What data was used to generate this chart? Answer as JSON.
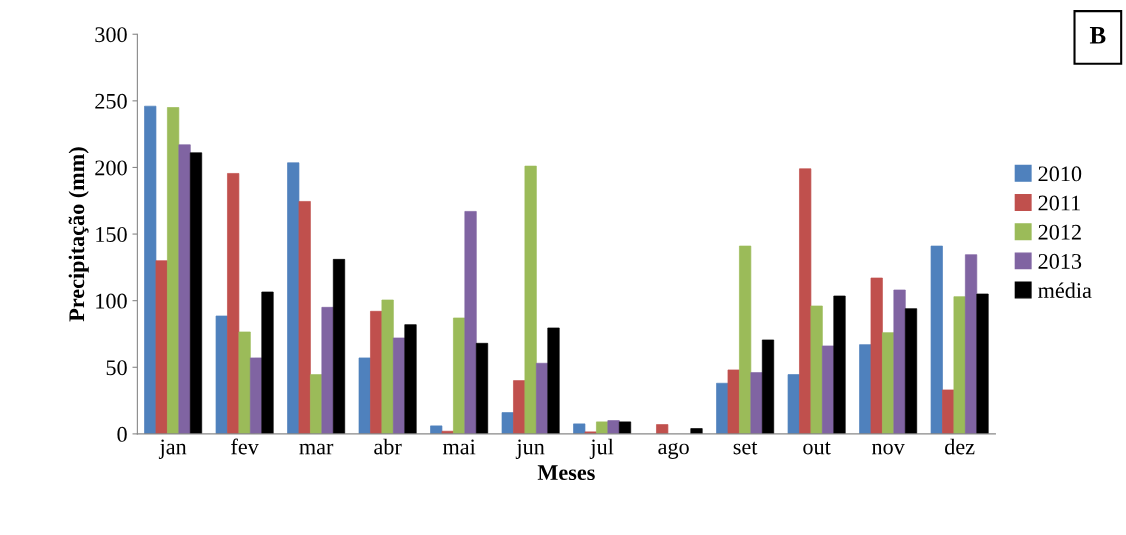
{
  "chart_data": {
    "type": "bar",
    "xlabel": "Meses",
    "ylabel": "Precipitação (mm)",
    "categories": [
      "jan",
      "fev",
      "mar",
      "abr",
      "mai",
      "jun",
      "jul",
      "ago",
      "set",
      "out",
      "nov",
      "dez"
    ],
    "series": [
      {
        "name": "2010",
        "color": "#4f81bd",
        "values": [
          246,
          88.5,
          203.5,
          57,
          6,
          16,
          7.5,
          null,
          38,
          44.5,
          67,
          141
        ]
      },
      {
        "name": "2011",
        "color": "#c0504d",
        "values": [
          130,
          195.5,
          174.5,
          92,
          2,
          40,
          1.5,
          7,
          48,
          199,
          117,
          33
        ]
      },
      {
        "name": "2012",
        "color": "#9bbb59",
        "values": [
          245,
          76.5,
          44.5,
          100.5,
          87,
          201,
          9,
          null,
          141,
          96,
          76,
          103
        ]
      },
      {
        "name": "2013",
        "color": "#8064a2",
        "values": [
          217,
          57,
          95,
          72,
          167,
          53,
          10,
          null,
          46,
          66,
          108,
          134.5
        ]
      },
      {
        "name": "média",
        "color": "#000000",
        "values": [
          211,
          106.5,
          131,
          82,
          68,
          79.5,
          9,
          4,
          70.5,
          103.5,
          94,
          105
        ]
      }
    ],
    "ylim": [
      0,
      300
    ],
    "yticks": [
      0,
      50,
      100,
      150,
      200,
      250,
      300
    ],
    "grid": false,
    "legend": "right",
    "annotations": [
      "B"
    ]
  }
}
